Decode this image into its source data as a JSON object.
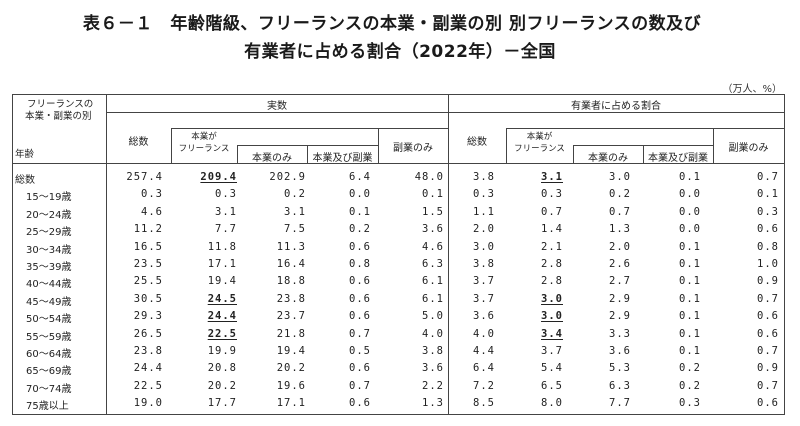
{
  "title": {
    "line1": "表６－１　年齢階級、フリーランスの本業・副業の別 別フリーランスの数及び",
    "line2": "有業者に占める割合（2022年）－全国"
  },
  "unit_note": "（万人、%）",
  "header": {
    "corner_top": "フリーランスの",
    "corner_mid": "本業・副業の別",
    "corner_bottom": "年齢",
    "section_actual": "実数",
    "section_share": "有業者に占める割合",
    "col_total": "総数",
    "col_main_free_1": "本業が",
    "col_main_free_2": "フリーランス",
    "col_main_only": "本業のみ",
    "col_main_and_side": "本業及び副業",
    "col_side_only": "副業のみ"
  },
  "rows": [
    {
      "label": "総数",
      "indent": false,
      "a": [
        "257.4",
        "209.4",
        "202.9",
        "6.4",
        "48.0"
      ],
      "s": [
        "3.8",
        "3.1",
        "3.0",
        "0.1",
        "0.7"
      ],
      "ua": true,
      "us": true
    },
    {
      "label": "15～19歳",
      "indent": true,
      "a": [
        "0.3",
        "0.3",
        "0.2",
        "0.0",
        "0.1"
      ],
      "s": [
        "0.3",
        "0.3",
        "0.2",
        "0.0",
        "0.1"
      ]
    },
    {
      "label": "20～24歳",
      "indent": true,
      "a": [
        "4.6",
        "3.1",
        "3.1",
        "0.1",
        "1.5"
      ],
      "s": [
        "1.1",
        "0.7",
        "0.7",
        "0.0",
        "0.3"
      ]
    },
    {
      "label": "25～29歳",
      "indent": true,
      "a": [
        "11.2",
        "7.7",
        "7.5",
        "0.2",
        "3.6"
      ],
      "s": [
        "2.0",
        "1.4",
        "1.3",
        "0.0",
        "0.6"
      ]
    },
    {
      "label": "30～34歳",
      "indent": true,
      "a": [
        "16.5",
        "11.8",
        "11.3",
        "0.6",
        "4.6"
      ],
      "s": [
        "3.0",
        "2.1",
        "2.0",
        "0.1",
        "0.8"
      ]
    },
    {
      "label": "35～39歳",
      "indent": true,
      "a": [
        "23.5",
        "17.1",
        "16.4",
        "0.8",
        "6.3"
      ],
      "s": [
        "3.8",
        "2.8",
        "2.6",
        "0.1",
        "1.0"
      ]
    },
    {
      "label": "40～44歳",
      "indent": true,
      "a": [
        "25.5",
        "19.4",
        "18.8",
        "0.6",
        "6.1"
      ],
      "s": [
        "3.7",
        "2.8",
        "2.7",
        "0.1",
        "0.9"
      ]
    },
    {
      "label": "45～49歳",
      "indent": true,
      "a": [
        "30.5",
        "24.5",
        "23.8",
        "0.6",
        "6.1"
      ],
      "s": [
        "3.7",
        "3.0",
        "2.9",
        "0.1",
        "0.7"
      ],
      "ua": true,
      "us": true
    },
    {
      "label": "50～54歳",
      "indent": true,
      "a": [
        "29.3",
        "24.4",
        "23.7",
        "0.6",
        "5.0"
      ],
      "s": [
        "3.6",
        "3.0",
        "2.9",
        "0.1",
        "0.6"
      ],
      "ua": true,
      "us": true
    },
    {
      "label": "55～59歳",
      "indent": true,
      "a": [
        "26.5",
        "22.5",
        "21.8",
        "0.7",
        "4.0"
      ],
      "s": [
        "4.0",
        "3.4",
        "3.3",
        "0.1",
        "0.6"
      ],
      "ua": true,
      "us": true
    },
    {
      "label": "60～64歳",
      "indent": true,
      "a": [
        "23.8",
        "19.9",
        "19.4",
        "0.5",
        "3.8"
      ],
      "s": [
        "4.4",
        "3.7",
        "3.6",
        "0.1",
        "0.7"
      ]
    },
    {
      "label": "65～69歳",
      "indent": true,
      "a": [
        "24.4",
        "20.8",
        "20.2",
        "0.6",
        "3.6"
      ],
      "s": [
        "6.4",
        "5.4",
        "5.3",
        "0.2",
        "0.9"
      ]
    },
    {
      "label": "70～74歳",
      "indent": true,
      "a": [
        "22.5",
        "20.2",
        "19.6",
        "0.7",
        "2.2"
      ],
      "s": [
        "7.2",
        "6.5",
        "6.3",
        "0.2",
        "0.7"
      ]
    },
    {
      "label": "75歳以上",
      "indent": true,
      "a": [
        "19.0",
        "17.7",
        "17.1",
        "0.6",
        "1.3"
      ],
      "s": [
        "8.5",
        "8.0",
        "7.7",
        "0.3",
        "0.6"
      ]
    }
  ]
}
